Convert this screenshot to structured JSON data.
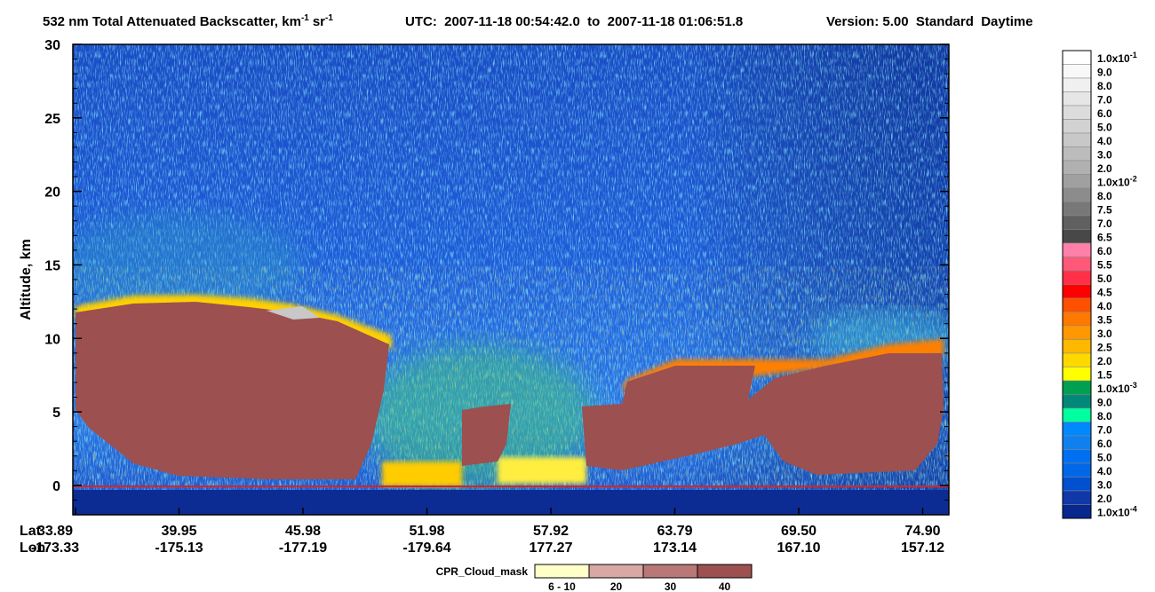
{
  "chart_data": {
    "type": "curtain",
    "title": {
      "main": "532 nm Total Attenuated Backscatter, km",
      "exp1": "-1",
      "sr": "sr",
      "exp2": "-1",
      "utc": "UTC:  2007-11-18 00:54:42.0  to  2007-11-18 01:06:51.8",
      "version": "Version: 5.00  Standard  Daytime"
    },
    "y_label": "Altitude, km",
    "ylim": [
      -2,
      30
    ],
    "yticks": [
      0,
      5,
      10,
      15,
      20,
      25,
      30
    ],
    "x_row_labels": [
      "Lat",
      "Lon"
    ],
    "lat": [
      "33.89",
      "39.95",
      "45.98",
      "51.98",
      "57.92",
      "63.79",
      "69.50",
      "74.90"
    ],
    "lon": [
      "-173.33",
      "-175.13",
      "-177.19",
      "-179.64",
      "177.27",
      "173.14",
      "167.10",
      "157.12"
    ],
    "colorbar": {
      "labels": [
        {
          "text": "1.0x10",
          "sup": "-1"
        },
        "9.0",
        "8.0",
        "7.0",
        "6.0",
        "5.0",
        "4.0",
        "3.0",
        "2.0",
        {
          "text": "1.0x10",
          "sup": "-2"
        },
        "8.0",
        "7.5",
        "7.0",
        "6.5",
        "6.0",
        "5.5",
        "5.0",
        "4.5",
        "4.0",
        "3.5",
        "3.0",
        "2.5",
        "2.0",
        "1.5",
        {
          "text": "1.0x10",
          "sup": "-3"
        },
        "9.0",
        "8.0",
        "7.0",
        "6.0",
        "5.0",
        "4.0",
        "3.0",
        "2.0",
        {
          "text": "1.0x10",
          "sup": "-4"
        }
      ],
      "colors": [
        "#ffffff",
        "#f8f8f8",
        "#f0f0f0",
        "#e6e6e6",
        "#dcdcdc",
        "#d2d2d2",
        "#c8c8c8",
        "#bcbcbc",
        "#b0b0b0",
        "#a0a0a0",
        "#8c8c8c",
        "#787878",
        "#606060",
        "#484848",
        "#ff80a8",
        "#ff5878",
        "#ff3048",
        "#ff0000",
        "#ff5000",
        "#ff7800",
        "#ff9800",
        "#ffb800",
        "#ffd800",
        "#ffff00",
        "#00a050",
        "#008878",
        "#00ffa0",
        "#0088ff",
        "#1080f0",
        "#0070f0",
        "#0068e8",
        "#0050d0",
        "#1038a8",
        "#082890"
      ]
    },
    "cloud_mask": {
      "title": "CPR_Cloud_mask",
      "labels": [
        "6 - 10",
        "20",
        "30",
        "40"
      ],
      "colors": [
        "#ffffc8",
        "#d8a8a4",
        "#b87878",
        "#9c5050"
      ]
    }
  }
}
